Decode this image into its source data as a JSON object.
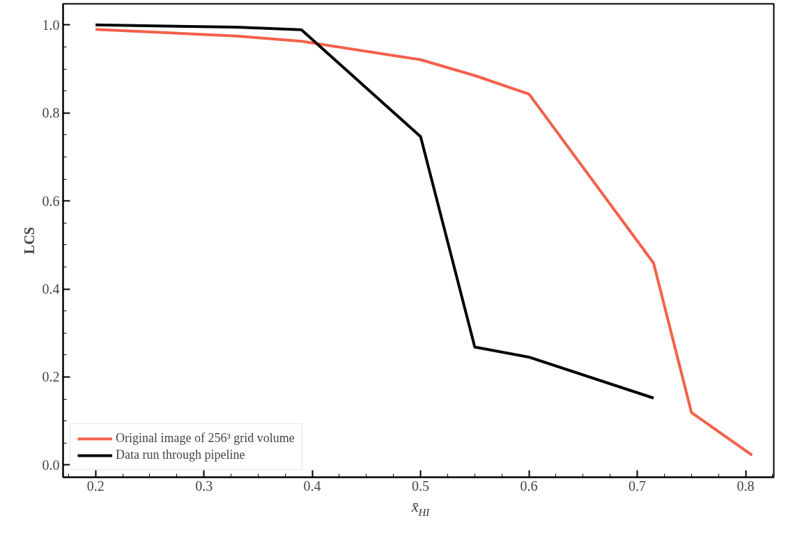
{
  "chart_data": {
    "type": "line",
    "xlabel": "x̄$_{HI}$",
    "ylabel": "LCS",
    "series": [
      {
        "name": "Original image of 256³ grid volume",
        "color": "#f4604a",
        "x": [
          0.2,
          0.33,
          0.39,
          0.5,
          0.55,
          0.6,
          0.715,
          0.75,
          0.806
        ],
        "values": [
          0.99,
          0.975,
          0.963,
          0.921,
          0.885,
          0.843,
          0.459,
          0.119,
          0.022
        ]
      },
      {
        "name": "Data run through pipeline",
        "color": "#000000",
        "x": [
          0.2,
          0.33,
          0.39,
          0.5,
          0.55,
          0.6,
          0.715
        ],
        "values": [
          1.0,
          0.995,
          0.989,
          0.746,
          0.268,
          0.245,
          0.152
        ]
      }
    ],
    "xlim": [
      0.17,
      0.826
    ],
    "ylim": [
      -0.028,
      1.048
    ],
    "xticks": [
      0.2,
      0.3,
      0.4,
      0.5,
      0.6,
      0.7,
      0.8
    ],
    "yticks": [
      {
        "value": 0,
        "label": "0.0"
      },
      0.2,
      0.4,
      0.6,
      0.8,
      {
        "value": 1,
        "label": "1.0"
      }
    ],
    "grid": false,
    "legend": "bottom left",
    "line_style": "solid",
    "marker": "none"
  }
}
